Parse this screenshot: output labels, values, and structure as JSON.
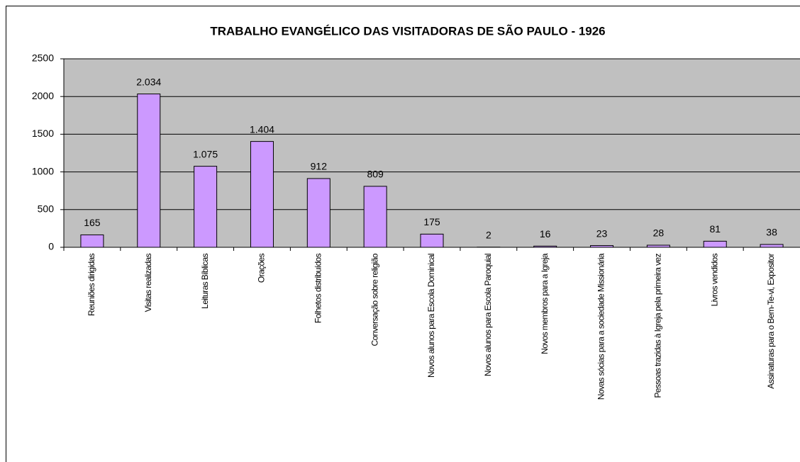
{
  "chart_data": {
    "type": "bar",
    "title": "TRABALHO EVANGÉLICO DAS VISITADORAS DE SÃO PAULO - 1926",
    "categories": [
      "Reuniões dirigidas",
      "Visitas realizadas",
      "Leituras Bíblicas",
      "Orações",
      "Folhetos distribuídos",
      "Conversação sobre religião",
      "Novos alunos para Escola Dominical",
      "Novos alunos para Escola Paroquial",
      "Novos membros para a Igreja",
      "Novas sócias para a sociedade Missionária",
      "Pessoas trazidas à Igreja pela primeira vez",
      "Livros vendidos",
      "Assinaturas para o Bem-Te-vi, Expositor"
    ],
    "values": [
      165,
      2034,
      1075,
      1404,
      912,
      809,
      175,
      2,
      16,
      23,
      28,
      81,
      38
    ],
    "value_labels": [
      "165",
      "2.034",
      "1.075",
      "1.404",
      "912",
      "809",
      "175",
      "2",
      "16",
      "23",
      "28",
      "81",
      "38"
    ],
    "color": "#cc99ff",
    "ylim": [
      0,
      2500
    ],
    "yticks": [
      0,
      500,
      1000,
      1500,
      2000,
      2500
    ],
    "grid": true
  }
}
